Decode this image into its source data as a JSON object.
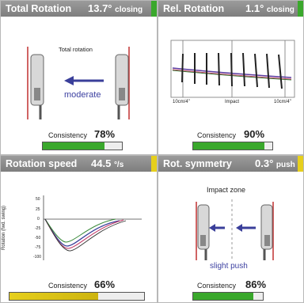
{
  "colors": {
    "green": "#3aa82c",
    "yellow": "#e6cf1c",
    "header": "#8a8a8a",
    "arrow": "#3a3f9a"
  },
  "panels": [
    {
      "title": "Total Rotation",
      "value": "13.7°",
      "unit": "closing",
      "stripe": "green",
      "inner_label": "Total rotation",
      "direction_label": "moderate",
      "consistency_label": "Consistency",
      "consistency_value": "78%",
      "consistency_fraction": 0.78,
      "bar_color": "green"
    },
    {
      "title": "Rel. Rotation",
      "value": "1.1°",
      "unit": "closing",
      "stripe": "green",
      "axis_left": "10cm/4\"",
      "axis_mid": "Impact",
      "axis_right": "10cm/4\"",
      "consistency_label": "Consistency",
      "consistency_value": "90%",
      "consistency_fraction": 0.9,
      "bar_color": "green"
    },
    {
      "title": "Rotation speed",
      "value": "44.5",
      "unit": "°/s",
      "stripe": "yellow",
      "y_axis_label": "Rotation (fwd. swing)",
      "y_ticks": [
        "50",
        "25",
        "0",
        "-25",
        "-50",
        "-75",
        "-100"
      ],
      "consistency_label": "Consistency",
      "consistency_value": "66%",
      "consistency_fraction": 0.66,
      "bar_color": "yellow"
    },
    {
      "title": "Rot. symmetry",
      "value": "0.3°",
      "unit": "push",
      "stripe": "yellow",
      "inner_label": "Impact zone",
      "direction_label": "slight push",
      "consistency_label": "Consistency",
      "consistency_value": "86%",
      "consistency_fraction": 0.86,
      "bar_color": "green"
    }
  ]
}
